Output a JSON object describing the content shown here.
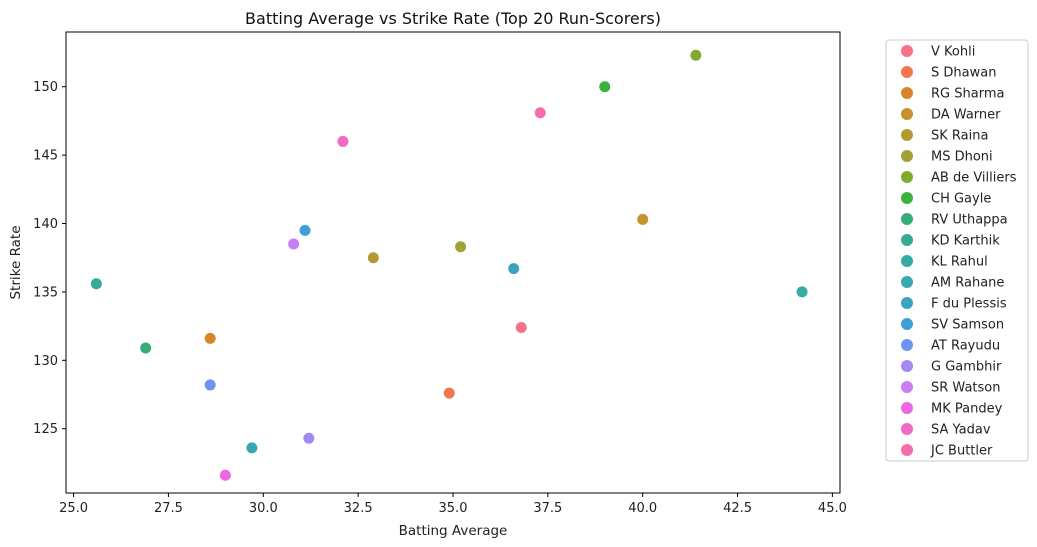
{
  "chart_data": {
    "type": "scatter",
    "title": "Batting Average vs Strike Rate (Top 20 Run-Scorers)",
    "xlabel": "Batting Average",
    "ylabel": "Strike Rate",
    "xlim": [
      24.8,
      45.2
    ],
    "ylim": [
      120.3,
      154.0
    ],
    "xticks": [
      25.0,
      27.5,
      30.0,
      32.5,
      35.0,
      37.5,
      40.0,
      42.5,
      45.0
    ],
    "xtick_labels": [
      "25.0",
      "27.5",
      "30.0",
      "32.5",
      "35.0",
      "37.5",
      "40.0",
      "42.5",
      "45.0"
    ],
    "yticks": [
      125,
      130,
      135,
      140,
      145,
      150
    ],
    "ytick_labels": [
      "125",
      "130",
      "135",
      "140",
      "145",
      "150"
    ],
    "grid": false,
    "legend_position": "outside-right",
    "series": [
      {
        "name": "V Kohli",
        "x": 36.8,
        "y": 132.4,
        "color": "#f77189"
      },
      {
        "name": "S Dhawan",
        "x": 34.9,
        "y": 127.6,
        "color": "#f3764b"
      },
      {
        "name": "RG Sharma",
        "x": 28.6,
        "y": 131.6,
        "color": "#d8842d"
      },
      {
        "name": "DA Warner",
        "x": 40.0,
        "y": 140.3,
        "color": "#c7912d"
      },
      {
        "name": "SK Raina",
        "x": 32.9,
        "y": 137.5,
        "color": "#b39a30"
      },
      {
        "name": "MS Dhoni",
        "x": 35.2,
        "y": 138.3,
        "color": "#a0a233"
      },
      {
        "name": "AB de Villiers",
        "x": 41.4,
        "y": 152.3,
        "color": "#80ab32"
      },
      {
        "name": "CH Gayle",
        "x": 39.0,
        "y": 150.0,
        "color": "#3bb23c"
      },
      {
        "name": "RV Uthappa",
        "x": 26.9,
        "y": 130.9,
        "color": "#34ad79"
      },
      {
        "name": "KD Karthik",
        "x": 25.6,
        "y": 135.6,
        "color": "#36ab94"
      },
      {
        "name": "KL Rahul",
        "x": 44.2,
        "y": 135.0,
        "color": "#37aaa3"
      },
      {
        "name": "AM Rahane",
        "x": 29.7,
        "y": 123.6,
        "color": "#39a8b1"
      },
      {
        "name": "F du Plessis",
        "x": 36.6,
        "y": 136.7,
        "color": "#3ba3bf"
      },
      {
        "name": "SV Samson",
        "x": 31.1,
        "y": 139.5,
        "color": "#3ea0d9"
      },
      {
        "name": "AT Rayudu",
        "x": 28.6,
        "y": 128.2,
        "color": "#6e93f2"
      },
      {
        "name": "G Gambhir",
        "x": 31.2,
        "y": 124.3,
        "color": "#a38af3"
      },
      {
        "name": "SR Watson",
        "x": 30.8,
        "y": 138.5,
        "color": "#c77ff2"
      },
      {
        "name": "MK Pandey",
        "x": 29.0,
        "y": 121.6,
        "color": "#ee66e0"
      },
      {
        "name": "SA Yadav",
        "x": 32.1,
        "y": 146.0,
        "color": "#f26ac6"
      },
      {
        "name": "JC Buttler",
        "x": 37.3,
        "y": 148.1,
        "color": "#f56da9"
      }
    ]
  }
}
